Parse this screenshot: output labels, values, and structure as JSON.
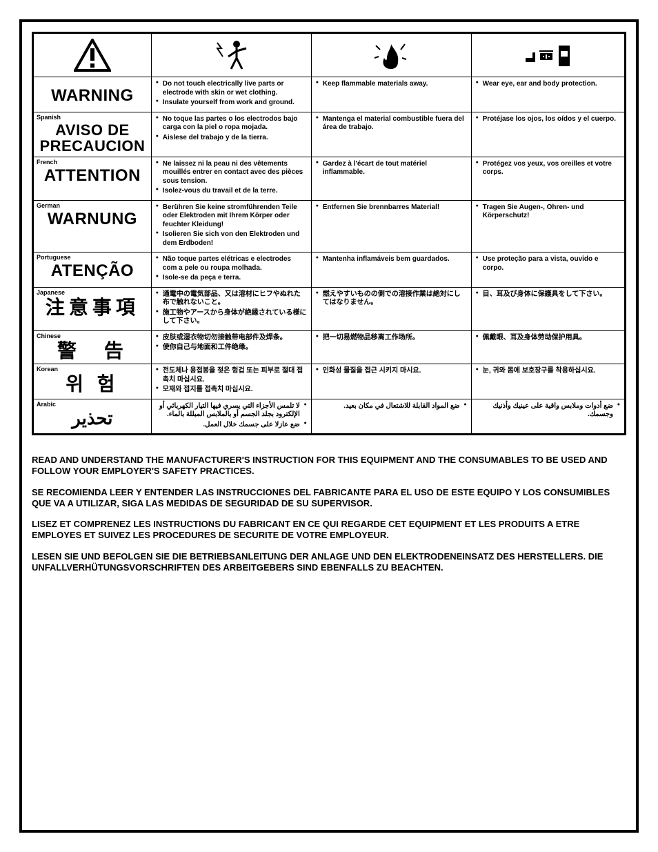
{
  "columns": [
    "lang",
    "electric",
    "fire",
    "ppe"
  ],
  "icons": {
    "warning": "exclamation-triangle",
    "electric": "shock-person",
    "fire": "flame-spark",
    "ppe": "gloves-goggles-helmet"
  },
  "rows": [
    {
      "lang_label": "",
      "warning_word": "WARNING",
      "electric": [
        "Do not touch electrically live parts or electrode with skin or wet clothing.",
        "Insulate yourself from work and ground."
      ],
      "fire": [
        "Keep flammable materials away."
      ],
      "ppe": [
        "Wear eye, ear and body protection."
      ]
    },
    {
      "lang_label": "Spanish",
      "warning_word": "AVISO DE PRECAUCION",
      "electric": [
        "No toque las partes o los electrodos bajo carga con la piel o ropa mojada.",
        "Aislese del trabajo y de la tierra."
      ],
      "fire": [
        "Mantenga el material combustible fuera del área de trabajo."
      ],
      "ppe": [
        "Protéjase los ojos, los oídos y el cuerpo."
      ]
    },
    {
      "lang_label": "French",
      "warning_word": "ATTENTION",
      "electric": [
        "Ne laissez ni la peau ni des vêtements mouillés entrer en contact avec des pièces sous tension.",
        "Isolez-vous du travail et de la terre."
      ],
      "fire": [
        "Gardez à l'écart de tout matériel inflammable."
      ],
      "ppe": [
        "Protégez vos yeux, vos oreilles et votre corps."
      ]
    },
    {
      "lang_label": "German",
      "warning_word": "WARNUNG",
      "electric": [
        "Berühren Sie keine stromführenden Teile oder Elektroden mit Ihrem Körper oder feuchter Kleidung!",
        "Isolieren Sie sich von den Elektroden und dem Erdboden!"
      ],
      "fire": [
        "Entfernen Sie brennbarres Material!"
      ],
      "ppe": [
        "Tragen Sie Augen-, Ohren- und Körperschutz!"
      ]
    },
    {
      "lang_label": "Portuguese",
      "warning_word": "ATENÇÃO",
      "electric": [
        "Não toque partes elétricas e electrodes com a pele ou roupa molhada.",
        "Isole-se da peça e terra."
      ],
      "fire": [
        "Mantenha inflamáveis bem guardados."
      ],
      "ppe": [
        "Use proteção para a vista, ouvido e corpo."
      ]
    },
    {
      "lang_label": "Japanese",
      "warning_word": "注意事項",
      "cjk": true,
      "electric": [
        "通電中の電気部品、又は溶材にヒフやぬれた布で触れないこと。",
        "施工物やアースから身体が絶縁されている様にして下さい。"
      ],
      "fire": [
        "燃えやすいものの側での溶接作業は絶対にしてはなりません。"
      ],
      "ppe": [
        "目、耳及び身体に保護具をして下さい。"
      ]
    },
    {
      "lang_label": "Chinese",
      "warning_word": "警　告",
      "cjk": true,
      "electric": [
        "皮肤或湿衣物切勿接触带电部件及焊条。",
        "使你自己与地面和工件绝缘。"
      ],
      "fire": [
        "把一切易燃物品移离工作场所。"
      ],
      "ppe": [
        "佩戴眼、耳及身体劳动保护用具。"
      ]
    },
    {
      "lang_label": "Korean",
      "warning_word": "위 험",
      "cjk": true,
      "electric": [
        "전도체나 용접봉을 젖은 헝겁 또는 피부로 절대 접촉치 마십시요.",
        "모재와 접지를 접촉치 마십시요."
      ],
      "fire": [
        "인화성 물질을 접근 시키지 마시요."
      ],
      "ppe": [
        "눈, 귀와 몸에 보호장구를 착용하십시요."
      ]
    },
    {
      "lang_label": "Arabic",
      "warning_word": "تحذير",
      "arabic": true,
      "electric": [
        "لا تلمس الأجزاء التي يسري فيها التيار الكهربائي أو الإلكترود بجلد الجسم أو بالملابس المبللة بالماء.",
        "ضع عازلا على جسمك خلال العمل."
      ],
      "fire": [
        "ضع المواد القابلة للاشتعال في مكان بعيد."
      ],
      "ppe": [
        "ضع أدوات وملابس واقية على عينيك وأذنيك وجسمك."
      ]
    }
  ],
  "footer": [
    "READ AND UNDERSTAND THE MANUFACTURER'S INSTRUCTION FOR THIS EQUIPMENT AND THE CONSUMABLES TO BE USED AND FOLLOW YOUR EMPLOYER'S SAFETY PRACTICES.",
    "SE RECOMIENDA LEER Y ENTENDER LAS INSTRUCCIONES DEL FABRICANTE PARA EL USO DE ESTE EQUIPO Y LOS CONSUMIBLES QUE VA A UTILIZAR, SIGA LAS MEDIDAS DE SEGURIDAD DE SU SUPERVISOR.",
    "LISEZ ET COMPRENEZ LES INSTRUCTIONS DU FABRICANT EN CE QUI REGARDE CET EQUIPMENT ET LES PRODUITS A ETRE EMPLOYES ET SUIVEZ LES PROCEDURES DE SECURITE DE VOTRE EMPLOYEUR.",
    "LESEN SIE UND BEFOLGEN SIE DIE BETRIEBSANLEITUNG DER ANLAGE UND DEN ELEKTRODENEINSATZ DES HERSTELLERS. DIE UNFALLVERHÜTUNGSVORSCHRIFTEN DES ARBEITGEBERS SIND EBENFALLS ZU BEACHTEN."
  ],
  "colors": {
    "border": "#000000",
    "background": "#ffffff",
    "text": "#000000"
  }
}
